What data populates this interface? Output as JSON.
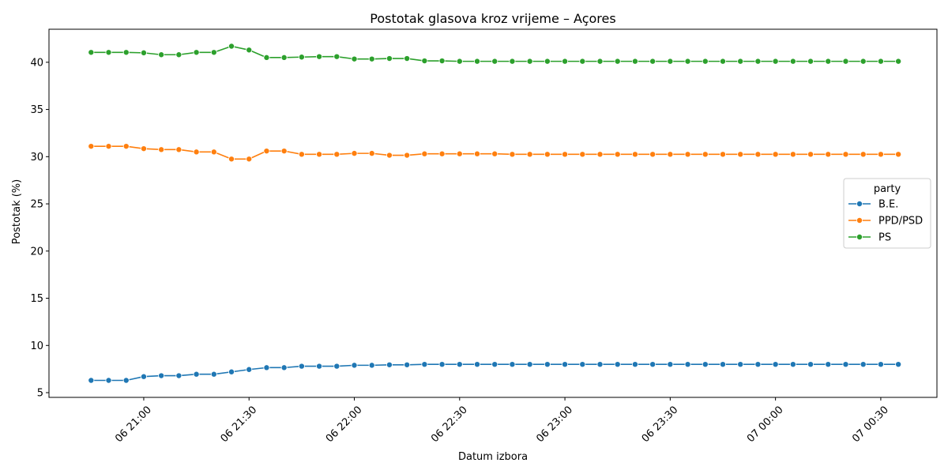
{
  "chart_data": {
    "type": "line",
    "title": "Postotak glasova kroz vrijeme – Açores",
    "xlabel": "Datum izbora",
    "ylabel": "Postotak (%)",
    "x_start": "2015-10-06 20:45",
    "x_step_minutes": 5,
    "x_ticks": [
      {
        "time": "2015-10-06 21:00",
        "label": "06 21:00"
      },
      {
        "time": "2015-10-06 21:30",
        "label": "06 21:30"
      },
      {
        "time": "2015-10-06 22:00",
        "label": "06 22:00"
      },
      {
        "time": "2015-10-06 22:30",
        "label": "06 22:30"
      },
      {
        "time": "2015-10-06 23:00",
        "label": "06 23:00"
      },
      {
        "time": "2015-10-06 23:30",
        "label": "06 23:30"
      },
      {
        "time": "2015-10-07 00:00",
        "label": "07 00:00"
      },
      {
        "time": "2015-10-07 00:30",
        "label": "07 00:30"
      }
    ],
    "y_ticks": [
      5,
      10,
      15,
      20,
      25,
      30,
      35,
      40
    ],
    "ylim": [
      4.5,
      43.5
    ],
    "xlim": [
      "2015-10-06 20:33",
      "2015-10-07 00:46"
    ],
    "grid": false,
    "legend": {
      "title": "party",
      "placement": "center-right"
    },
    "series": [
      {
        "name": "B.E.",
        "color": "#1f77b4",
        "values": [
          6.3,
          6.3,
          6.3,
          6.7,
          6.8,
          6.8,
          6.95,
          6.95,
          7.2,
          7.45,
          7.65,
          7.65,
          7.8,
          7.8,
          7.8,
          7.9,
          7.9,
          7.95,
          7.95,
          8.0,
          8.0,
          8.0,
          8.0,
          8.0,
          8.0,
          8.0,
          8.0,
          8.0,
          8.0,
          8.0,
          8.0,
          8.0,
          8.0,
          8.0,
          8.0,
          8.0,
          8.0,
          8.0,
          8.0,
          8.0,
          8.0,
          8.0,
          8.0,
          8.0,
          8.0,
          8.0,
          8.0
        ]
      },
      {
        "name": "PPD/PSD",
        "color": "#ff7f0e",
        "values": [
          31.1,
          31.1,
          31.1,
          30.85,
          30.75,
          30.75,
          30.5,
          30.5,
          29.75,
          29.75,
          30.6,
          30.6,
          30.25,
          30.25,
          30.25,
          30.35,
          30.35,
          30.15,
          30.15,
          30.3,
          30.3,
          30.3,
          30.3,
          30.3,
          30.25,
          30.25,
          30.25,
          30.25,
          30.25,
          30.25,
          30.25,
          30.25,
          30.25,
          30.25,
          30.25,
          30.25,
          30.25,
          30.25,
          30.25,
          30.25,
          30.25,
          30.25,
          30.25,
          30.25,
          30.25,
          30.25,
          30.25
        ]
      },
      {
        "name": "PS",
        "color": "#2ca02c",
        "values": [
          41.05,
          41.05,
          41.05,
          41.0,
          40.8,
          40.8,
          41.05,
          41.05,
          41.7,
          41.3,
          40.5,
          40.5,
          40.55,
          40.6,
          40.6,
          40.35,
          40.35,
          40.4,
          40.4,
          40.15,
          40.15,
          40.1,
          40.1,
          40.1,
          40.1,
          40.1,
          40.1,
          40.1,
          40.1,
          40.1,
          40.1,
          40.1,
          40.1,
          40.1,
          40.1,
          40.1,
          40.1,
          40.1,
          40.1,
          40.1,
          40.1,
          40.1,
          40.1,
          40.1,
          40.1,
          40.1,
          40.1
        ]
      }
    ]
  }
}
